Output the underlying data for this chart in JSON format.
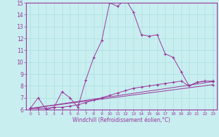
{
  "background_color": "#c8eef0",
  "grid_color": "#aadddd",
  "line_color": "#993399",
  "xlabel": "Windchill (Refroidissement éolien,°C)",
  "xlim": [
    -0.5,
    23.5
  ],
  "ylim": [
    6,
    15
  ],
  "yticks": [
    6,
    7,
    8,
    9,
    10,
    11,
    12,
    13,
    14,
    15
  ],
  "xticks": [
    0,
    1,
    2,
    3,
    4,
    5,
    6,
    7,
    8,
    9,
    10,
    11,
    12,
    13,
    14,
    15,
    16,
    17,
    18,
    19,
    20,
    21,
    22,
    23
  ],
  "curve1_x": [
    0,
    1,
    2,
    3,
    4,
    5,
    6,
    7,
    8,
    9,
    10,
    11,
    12,
    13,
    14,
    15,
    16,
    17,
    18,
    19,
    20,
    21,
    22,
    23
  ],
  "curve1_y": [
    6.1,
    7.0,
    6.0,
    6.2,
    7.5,
    7.0,
    6.2,
    8.5,
    10.4,
    11.8,
    15.0,
    14.7,
    15.3,
    14.2,
    12.3,
    12.2,
    12.3,
    10.7,
    10.4,
    9.2,
    8.0,
    8.3,
    8.4,
    8.4
  ],
  "curve2_x": [
    0,
    1,
    2,
    3,
    4,
    5,
    6,
    7,
    8,
    9,
    10,
    11,
    12,
    13,
    14,
    15,
    16,
    17,
    18,
    19,
    20,
    21,
    22,
    23
  ],
  "curve2_y": [
    6.1,
    6.1,
    6.1,
    6.2,
    6.2,
    6.3,
    6.4,
    6.6,
    6.8,
    7.0,
    7.2,
    7.4,
    7.6,
    7.8,
    7.9,
    8.0,
    8.1,
    8.2,
    8.3,
    8.4,
    8.0,
    8.3,
    8.4,
    8.4
  ],
  "curve3_x": [
    0,
    23
  ],
  "curve3_y": [
    6.1,
    8.35
  ],
  "curve4_x": [
    0,
    23
  ],
  "curve4_y": [
    6.1,
    8.1
  ]
}
